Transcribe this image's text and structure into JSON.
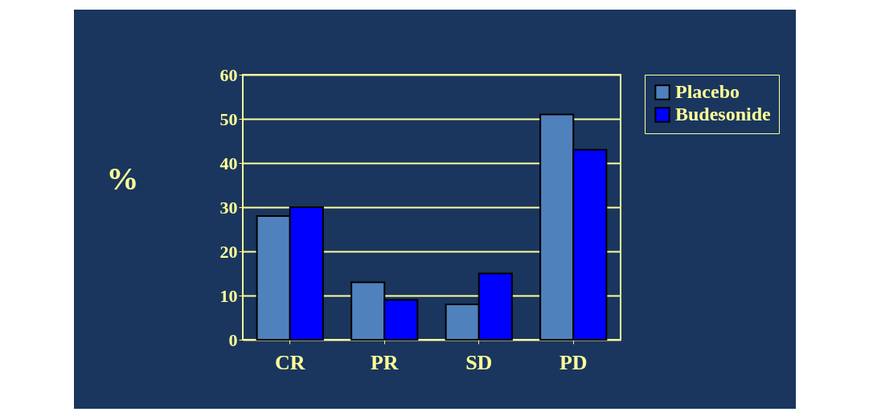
{
  "chart_data": {
    "type": "bar",
    "ylabel": "%",
    "categories": [
      "CR",
      "PR",
      "SD",
      "PD"
    ],
    "series": [
      {
        "name": "Placebo",
        "color": "#4f81bd",
        "values": [
          28,
          13,
          8,
          51
        ]
      },
      {
        "name": "Budesonide",
        "color": "#0000ff",
        "values": [
          30,
          9,
          15,
          43
        ]
      }
    ],
    "ylim": [
      0,
      60
    ],
    "yticks": [
      0,
      10,
      20,
      30,
      40,
      50,
      60
    ],
    "grid": "y",
    "legend": "right"
  }
}
